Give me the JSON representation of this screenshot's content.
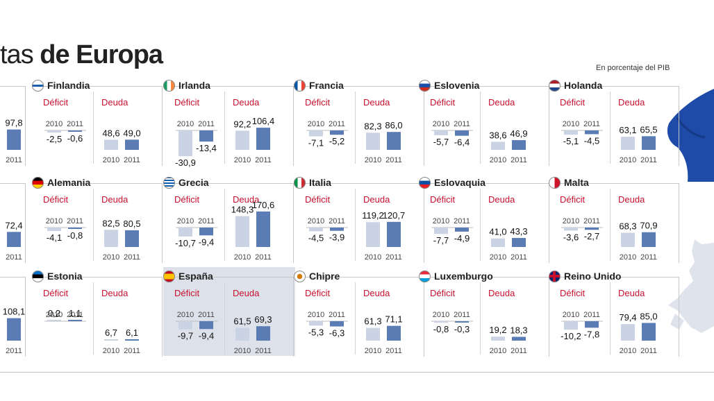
{
  "header": {
    "title_pre": "tas ",
    "title_main": "de Europa",
    "subtitle": "En porcentaje del PIB"
  },
  "colors": {
    "bar_2010": "#c9d3e4",
    "bar_2011": "#5a7bb3",
    "label_red": "#c8102e"
  },
  "labels": {
    "deficit": "Déficit",
    "deuda": "Deuda",
    "year_a": "2010",
    "year_b": "2011"
  },
  "chart_data": {
    "type": "bar",
    "title": "",
    "years": [
      "2010",
      "2011"
    ],
    "partial_panels": [
      {
        "name": "",
        "deuda": [
          null,
          97.8
        ]
      },
      {
        "name": "",
        "deuda": [
          null,
          72.4
        ]
      },
      {
        "name": "",
        "deuda": [
          null,
          108.1
        ]
      }
    ],
    "countries": [
      {
        "name": "Finlandia",
        "flag": "finland-flag",
        "deficit": [
          -2.5,
          -0.6
        ],
        "deuda": [
          48.6,
          49.0
        ]
      },
      {
        "name": "Irlanda",
        "flag": "ireland-flag",
        "deficit": [
          -30.9,
          -13.4
        ],
        "deuda": [
          92.2,
          106.4
        ]
      },
      {
        "name": "Francia",
        "flag": "france-flag",
        "deficit": [
          -7.1,
          -5.2
        ],
        "deuda": [
          82.3,
          86.0
        ]
      },
      {
        "name": "Eslovenia",
        "flag": "slovenia-flag",
        "deficit": [
          -5.7,
          -6.4
        ],
        "deuda": [
          38.6,
          46.9
        ]
      },
      {
        "name": "Holanda",
        "flag": "netherlands-flag",
        "deficit": [
          -5.1,
          -4.5
        ],
        "deuda": [
          63.1,
          65.5
        ]
      },
      {
        "name": "Alemania",
        "flag": "germany-flag",
        "deficit": [
          -4.1,
          -0.8
        ],
        "deuda": [
          82.5,
          80.5
        ]
      },
      {
        "name": "Grecia",
        "flag": "greece-flag",
        "deficit": [
          -10.7,
          -9.4
        ],
        "deuda": [
          148.3,
          170.6
        ]
      },
      {
        "name": "Italia",
        "flag": "italy-flag",
        "deficit": [
          -4.5,
          -3.9
        ],
        "deuda": [
          119.2,
          120.7
        ]
      },
      {
        "name": "Eslovaquia",
        "flag": "slovakia-flag",
        "deficit": [
          -7.7,
          -4.9
        ],
        "deuda": [
          41.0,
          43.3
        ]
      },
      {
        "name": "Malta",
        "flag": "malta-flag",
        "deficit": [
          -3.6,
          -2.7
        ],
        "deuda": [
          68.3,
          70.9
        ]
      },
      {
        "name": "Estonia",
        "flag": "estonia-flag",
        "deficit": [
          0.2,
          1.1
        ],
        "deuda": [
          6.7,
          6.1
        ]
      },
      {
        "name": "España",
        "flag": "spain-flag",
        "deficit": [
          -9.7,
          -9.4
        ],
        "deuda": [
          61.5,
          69.3
        ],
        "highlight": true
      },
      {
        "name": "Chipre",
        "flag": "cyprus-flag",
        "deficit": [
          -5.3,
          -6.3
        ],
        "deuda": [
          61.3,
          71.1
        ]
      },
      {
        "name": "Luxemburgo",
        "flag": "luxembourg-flag",
        "deficit": [
          -0.8,
          -0.3
        ],
        "deuda": [
          19.2,
          18.3
        ]
      },
      {
        "name": "Reino Unido",
        "flag": "uk-flag",
        "deficit": [
          -10.2,
          -7.8
        ],
        "deuda": [
          79.4,
          85.0
        ]
      }
    ]
  }
}
